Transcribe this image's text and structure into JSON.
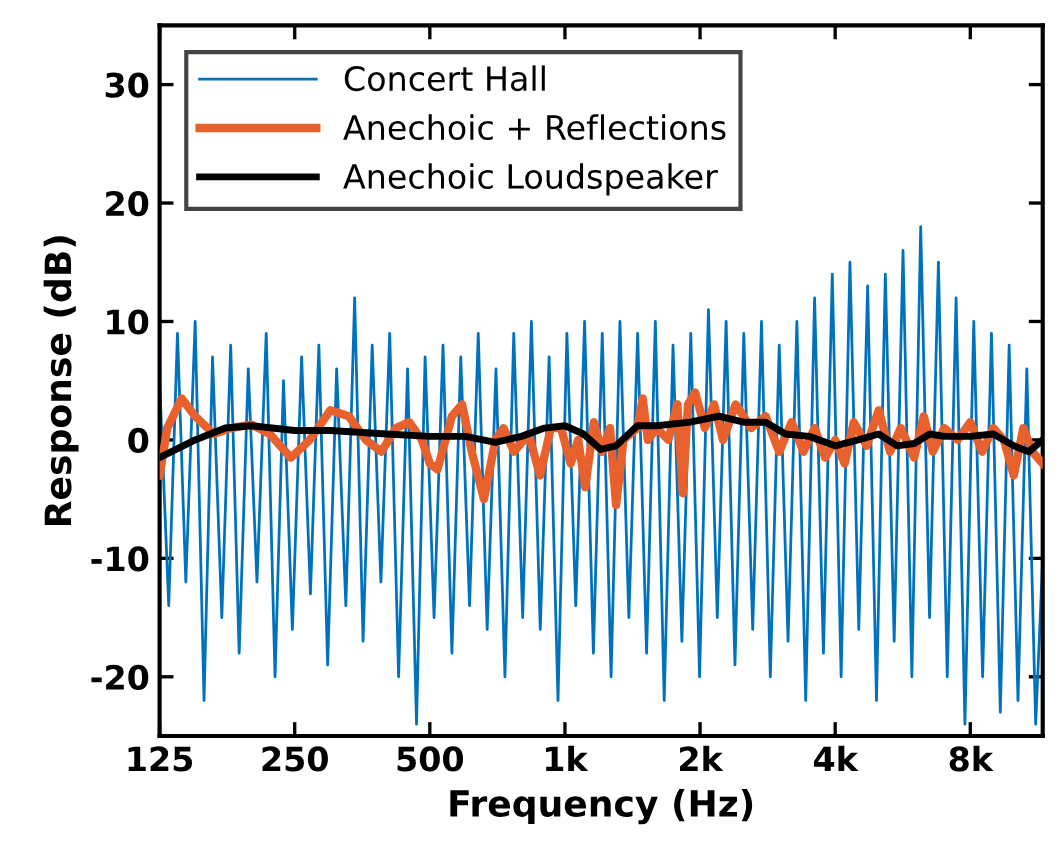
{
  "chart_data": {
    "type": "line",
    "xlabel": "Frequency (Hz)",
    "ylabel": "Response (dB)",
    "log": "x",
    "xlim": [
      125,
      11600
    ],
    "ylim": [
      -25,
      35
    ],
    "xticks": [
      125,
      250,
      500,
      {
        "value": 1000,
        "label": "1k"
      },
      {
        "value": 2000,
        "label": "2k"
      },
      {
        "value": 4000,
        "label": "4k"
      },
      {
        "value": 8000,
        "label": "8k"
      }
    ],
    "yticks": [
      -20,
      -10,
      0,
      10,
      20,
      30
    ],
    "grid": false,
    "legend": "top left",
    "marker": "none",
    "line_style": "solid",
    "series": [
      {
        "name": "Concert Hall",
        "color": "#0072bd",
        "x": [
          125,
          131,
          137,
          143,
          150,
          157,
          164,
          172,
          180,
          188,
          197,
          206,
          216,
          226,
          236,
          247,
          259,
          271,
          283,
          296,
          310,
          325,
          340,
          355,
          372,
          389,
          407,
          426,
          446,
          467,
          488,
          511,
          535,
          560,
          586,
          613,
          641,
          671,
          702,
          735,
          769,
          805,
          842,
          881,
          922,
          965,
          1010,
          1057,
          1106,
          1157,
          1211,
          1267,
          1326,
          1388,
          1452,
          1520,
          1590,
          1664,
          1741,
          1822,
          1907,
          1995,
          2088,
          2185,
          2286,
          2392,
          2503,
          2620,
          2741,
          2868,
          3002,
          3141,
          3287,
          3439,
          3599,
          3766,
          3941,
          4124,
          4315,
          4515,
          4725,
          4944,
          5174,
          5414,
          5665,
          5928,
          6203,
          6491,
          6793,
          7108,
          7438,
          7783,
          8144,
          8522,
          8918,
          9332,
          9765,
          10218,
          10692,
          11188,
          11600
        ],
        "values": [
          5,
          -14,
          9,
          -12,
          10,
          -22,
          7,
          -15,
          8,
          -18,
          6,
          -12,
          9,
          -20,
          5,
          -16,
          7,
          -13,
          8,
          -19,
          6,
          -14,
          12,
          -17,
          8,
          -12,
          9,
          -20,
          6,
          -24,
          7,
          -15,
          8,
          -18,
          7,
          -14,
          9,
          -16,
          6,
          -20,
          9,
          -15,
          10,
          -16,
          7,
          -22,
          9,
          -14,
          10,
          -18,
          9,
          -20,
          10,
          -15,
          9,
          -18,
          10,
          -22,
          8,
          -17,
          9,
          -20,
          11,
          -15,
          10,
          -19,
          9,
          -16,
          10,
          -20,
          8,
          -17,
          10,
          -22,
          12,
          -18,
          14,
          -20,
          15,
          -16,
          13,
          -22,
          14,
          -17,
          16,
          -20,
          18,
          -15,
          15,
          -20,
          12,
          -24,
          10,
          -20,
          9,
          -23,
          8,
          -22,
          6,
          -24,
          -10
        ]
      },
      {
        "name": "Anechoic + Reflections",
        "color": "#e8602c",
        "x": [
          125,
          130,
          140,
          150,
          165,
          180,
          200,
          220,
          245,
          270,
          300,
          330,
          360,
          390,
          420,
          450,
          480,
          500,
          520,
          560,
          590,
          620,
          660,
          700,
          730,
          770,
          830,
          880,
          930,
          980,
          1030,
          1070,
          1110,
          1160,
          1210,
          1260,
          1300,
          1350,
          1450,
          1490,
          1530,
          1600,
          1700,
          1780,
          1830,
          1880,
          1950,
          2050,
          2150,
          2250,
          2400,
          2600,
          2800,
          3000,
          3200,
          3400,
          3600,
          3800,
          4000,
          4200,
          4400,
          4700,
          5000,
          5300,
          5600,
          6000,
          6300,
          6600,
          7000,
          7500,
          8000,
          8500,
          9000,
          9500,
          10000,
          10500,
          11000,
          11600
        ],
        "values": [
          -3,
          1,
          3.5,
          2,
          0.5,
          1,
          1.3,
          0.5,
          -1.5,
          0,
          2.5,
          2,
          0,
          -1,
          1,
          1.5,
          0,
          -2,
          -2.5,
          2,
          3,
          -1,
          -5,
          0,
          1,
          -1,
          0.5,
          -3,
          1,
          1,
          -2,
          0,
          -4,
          1.5,
          -1,
          1,
          -5.5,
          0,
          1,
          3.5,
          0,
          1,
          0,
          3,
          -4.5,
          3,
          4,
          1,
          3,
          0,
          3,
          1,
          2,
          -1,
          1.5,
          -1,
          1,
          -1.5,
          0,
          -2,
          1.5,
          -0.5,
          2.5,
          -1,
          1,
          -1.5,
          2,
          -1,
          1,
          0,
          1.5,
          -1,
          1,
          0,
          -3,
          1,
          -1,
          -2
        ]
      },
      {
        "name": "Anechoic Loudspeaker",
        "color": "#000000",
        "x": [
          125,
          150,
          175,
          200,
          250,
          300,
          400,
          500,
          600,
          700,
          800,
          900,
          1000,
          1100,
          1200,
          1300,
          1450,
          1600,
          1900,
          2200,
          2500,
          2800,
          3100,
          3500,
          4000,
          4500,
          5000,
          5500,
          6000,
          6500,
          7000,
          8000,
          9000,
          10000,
          10800,
          11600
        ],
        "values": [
          -1.5,
          0,
          1,
          1.2,
          0.8,
          0.8,
          0.5,
          0.3,
          0.3,
          -0.2,
          0.3,
          1,
          1.2,
          0.5,
          -0.8,
          -0.5,
          1.2,
          1.2,
          1.5,
          2,
          1.5,
          1.5,
          0.5,
          0.3,
          -0.5,
          0,
          0.5,
          -0.5,
          -0.3,
          0.5,
          0.3,
          0.3,
          0.5,
          -0.5,
          -1,
          0
        ]
      }
    ]
  }
}
